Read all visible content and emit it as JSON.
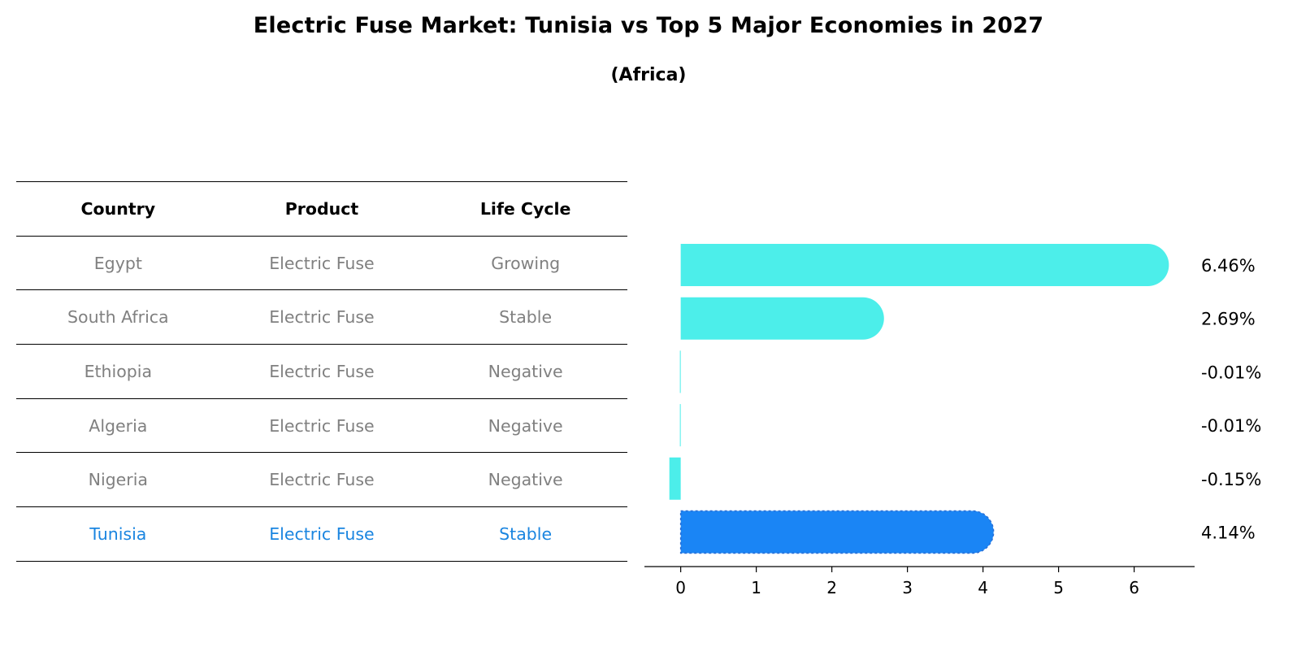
{
  "title": "Electric Fuse Market: Tunisia vs Top 5 Major Economies in 2027",
  "subtitle": "(Africa)",
  "table": {
    "headers": [
      "Country",
      "Product",
      "Life Cycle"
    ],
    "rows": [
      {
        "country": "Egypt",
        "product": "Electric Fuse",
        "life_cycle": "Growing",
        "highlight": false
      },
      {
        "country": "South Africa",
        "product": "Electric Fuse",
        "life_cycle": "Stable",
        "highlight": false
      },
      {
        "country": "Ethiopia",
        "product": "Electric Fuse",
        "life_cycle": "Negative",
        "highlight": false
      },
      {
        "country": "Algeria",
        "product": "Electric Fuse",
        "life_cycle": "Negative",
        "highlight": false
      },
      {
        "country": "Nigeria",
        "product": "Electric Fuse",
        "life_cycle": "Negative",
        "highlight": false
      },
      {
        "country": "Tunisia",
        "product": "Electric Fuse",
        "life_cycle": "Stable",
        "highlight": true
      }
    ],
    "colors": {
      "header": "#000000",
      "row": "#808080",
      "highlight": "#1a85e0"
    }
  },
  "chart_data": {
    "type": "bar",
    "orientation": "horizontal",
    "categories": [
      "Egypt",
      "South Africa",
      "Ethiopia",
      "Algeria",
      "Nigeria",
      "Tunisia"
    ],
    "values": [
      6.46,
      2.69,
      -0.01,
      -0.01,
      -0.15,
      4.14
    ],
    "value_labels": [
      "6.46%",
      "2.69%",
      "-0.01%",
      "-0.01%",
      "-0.15%",
      "4.14%"
    ],
    "xlim": [
      -0.48,
      6.8
    ],
    "xticks": [
      0,
      1,
      2,
      3,
      4,
      5,
      6
    ],
    "colors": {
      "default": "#4ceeea",
      "highlight": "#1a85f5"
    },
    "highlight_index": 5,
    "grid": false
  }
}
